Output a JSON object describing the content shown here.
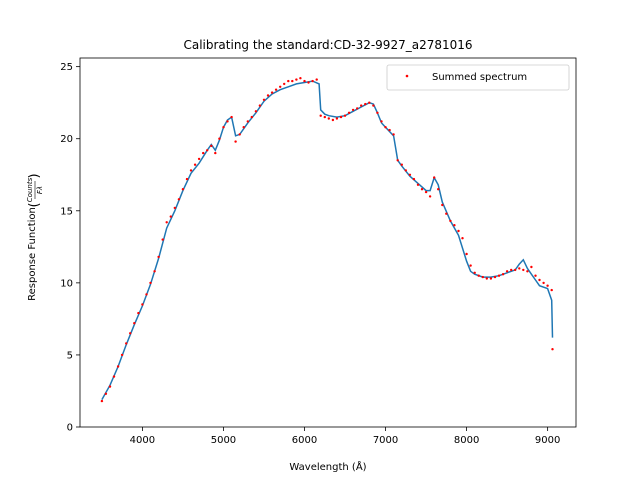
{
  "chart_data": {
    "type": "scatter",
    "title": "Calibrating the standard:CD-32-9927_a2781016",
    "xlabel": "Wavelength (Å)",
    "ylabel_main": "Response Function ",
    "ylabel_num": "Counts",
    "ylabel_den": "Fλ",
    "xlim": [
      3230,
      9350
    ],
    "ylim": [
      0,
      25.6
    ],
    "x_ticks": [
      4000,
      5000,
      6000,
      7000,
      8000,
      9000
    ],
    "y_ticks": [
      0,
      5,
      10,
      15,
      20,
      25
    ],
    "grid": false,
    "legend_position": "top-right",
    "colors": {
      "points": "#ff0000",
      "fit": "#1f77b4"
    },
    "series": [
      {
        "name": "Summed spectrum",
        "kind": "points",
        "x": [
          3500,
          3550,
          3600,
          3650,
          3700,
          3750,
          3800,
          3850,
          3900,
          3950,
          4000,
          4050,
          4100,
          4150,
          4200,
          4250,
          4300,
          4350,
          4400,
          4450,
          4500,
          4550,
          4600,
          4650,
          4700,
          4750,
          4800,
          4850,
          4900,
          4950,
          5000,
          5050,
          5100,
          5150,
          5200,
          5250,
          5300,
          5350,
          5400,
          5450,
          5500,
          5550,
          5600,
          5650,
          5700,
          5750,
          5800,
          5850,
          5900,
          5950,
          6000,
          6050,
          6100,
          6150,
          6200,
          6250,
          6300,
          6350,
          6400,
          6450,
          6500,
          6550,
          6600,
          6650,
          6700,
          6750,
          6800,
          6850,
          6900,
          6950,
          7000,
          7050,
          7100,
          7150,
          7200,
          7250,
          7300,
          7350,
          7400,
          7450,
          7500,
          7550,
          7600,
          7650,
          7700,
          7750,
          7800,
          7850,
          7900,
          7950,
          8000,
          8050,
          8100,
          8150,
          8200,
          8250,
          8300,
          8350,
          8400,
          8450,
          8500,
          8550,
          8600,
          8650,
          8700,
          8750,
          8800,
          8850,
          8900,
          8950,
          9000,
          9050,
          9060
        ],
        "y": [
          1.8,
          2.3,
          2.8,
          3.5,
          4.2,
          5.0,
          5.8,
          6.5,
          7.2,
          7.9,
          8.5,
          9.2,
          10.0,
          10.8,
          11.8,
          13.0,
          14.2,
          14.6,
          15.2,
          15.8,
          16.5,
          17.2,
          17.8,
          18.2,
          18.6,
          19.0,
          19.2,
          19.5,
          19.0,
          20.0,
          20.8,
          21.2,
          21.5,
          19.8,
          20.3,
          20.8,
          21.2,
          21.5,
          21.9,
          22.3,
          22.7,
          23.0,
          23.2,
          23.4,
          23.6,
          23.8,
          24.0,
          24.0,
          24.1,
          24.2,
          24.0,
          23.9,
          24.0,
          24.1,
          21.6,
          21.5,
          21.4,
          21.3,
          21.4,
          21.5,
          21.6,
          21.8,
          22.0,
          22.1,
          22.3,
          22.4,
          22.5,
          22.3,
          21.8,
          21.2,
          20.8,
          20.6,
          20.3,
          18.5,
          18.2,
          17.8,
          17.5,
          17.2,
          16.8,
          16.5,
          16.3,
          16.0,
          17.3,
          16.5,
          15.4,
          14.8,
          14.3,
          14.0,
          13.6,
          13.1,
          12.0,
          11.2,
          10.7,
          10.5,
          10.4,
          10.3,
          10.3,
          10.4,
          10.5,
          10.6,
          10.8,
          10.9,
          10.9,
          11.0,
          10.9,
          10.8,
          11.1,
          10.5,
          10.2,
          10.0,
          9.8,
          9.5,
          5.4
        ]
      },
      {
        "name": "",
        "kind": "line",
        "x": [
          3500,
          3600,
          3700,
          3800,
          3900,
          4000,
          4100,
          4200,
          4300,
          4400,
          4500,
          4600,
          4700,
          4800,
          4850,
          4900,
          4950,
          5000,
          5050,
          5100,
          5150,
          5200,
          5300,
          5400,
          5500,
          5600,
          5700,
          5800,
          5900,
          6000,
          6100,
          6180,
          6200,
          6250,
          6300,
          6400,
          6500,
          6600,
          6700,
          6800,
          6850,
          6900,
          6950,
          7000,
          7100,
          7150,
          7200,
          7300,
          7400,
          7500,
          7550,
          7600,
          7650,
          7700,
          7800,
          7900,
          8000,
          8050,
          8100,
          8200,
          8300,
          8400,
          8500,
          8600,
          8650,
          8700,
          8750,
          8800,
          8850,
          8900,
          9000,
          9050,
          9060
        ],
        "y": [
          1.9,
          2.9,
          4.2,
          5.7,
          7.1,
          8.4,
          9.9,
          11.7,
          13.8,
          15.0,
          16.4,
          17.6,
          18.3,
          19.2,
          19.6,
          19.2,
          19.9,
          20.8,
          21.3,
          21.5,
          20.2,
          20.3,
          21.1,
          21.8,
          22.6,
          23.1,
          23.4,
          23.6,
          23.8,
          23.9,
          24.0,
          23.8,
          22.0,
          21.7,
          21.6,
          21.5,
          21.6,
          21.9,
          22.2,
          22.5,
          22.4,
          21.8,
          21.1,
          20.8,
          20.2,
          18.5,
          18.1,
          17.4,
          16.9,
          16.4,
          16.4,
          17.3,
          16.8,
          15.6,
          14.3,
          13.3,
          11.5,
          10.8,
          10.6,
          10.4,
          10.4,
          10.5,
          10.7,
          10.9,
          11.3,
          11.6,
          11.0,
          10.6,
          10.2,
          9.8,
          9.6,
          8.8,
          6.2
        ]
      }
    ]
  }
}
